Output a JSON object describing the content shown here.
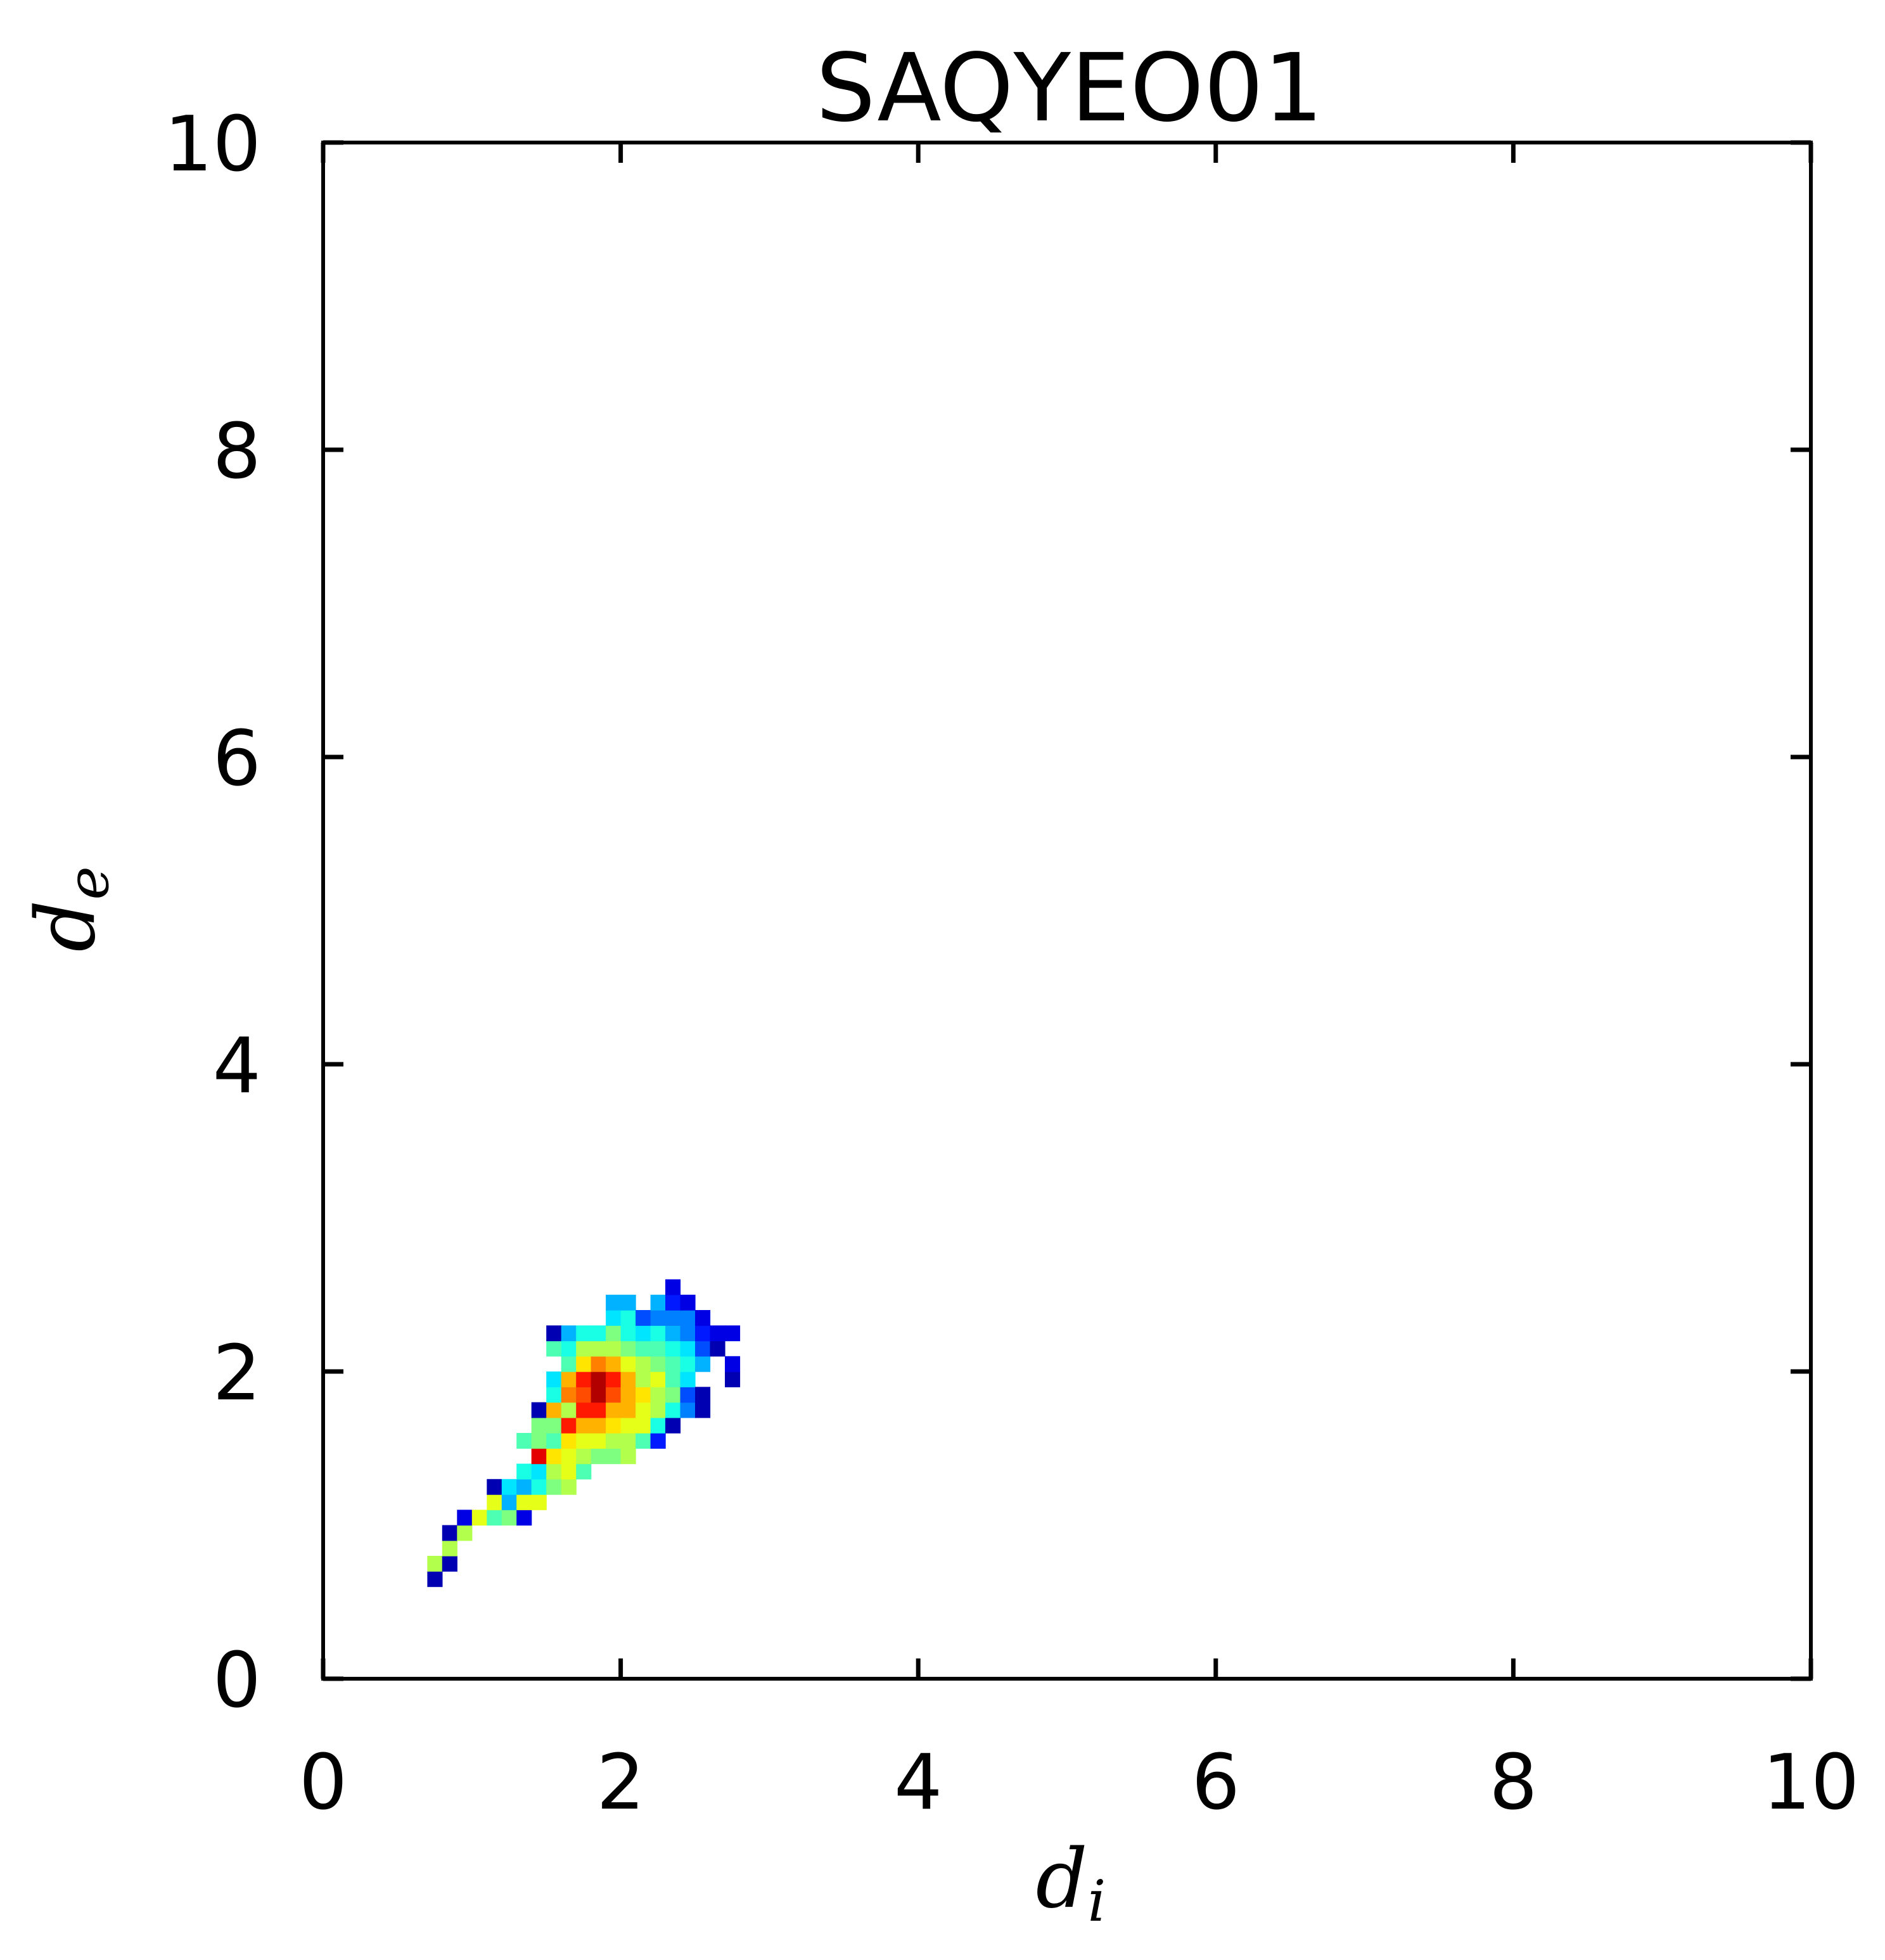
{
  "chart_data": {
    "type": "heatmap",
    "title": "SAQYEO01",
    "xlabel": {
      "main": "d",
      "sub": "i"
    },
    "ylabel": {
      "main": "d",
      "sub": "e"
    },
    "xlim": [
      0,
      10
    ],
    "ylim": [
      0,
      10
    ],
    "xticks": [
      0,
      2,
      4,
      6,
      8,
      10
    ],
    "yticks": [
      0,
      2,
      4,
      6,
      8,
      10
    ],
    "xtick_labels": [
      "0",
      "2",
      "4",
      "6",
      "8",
      "10"
    ],
    "ytick_labels": [
      "0",
      "2",
      "4",
      "6",
      "8",
      "10"
    ],
    "grid": false,
    "colormap": "jet",
    "bin_size": 0.1,
    "colormap_stops": [
      "#00007f",
      "#0000ff",
      "#007fff",
      "#00ffff",
      "#7fff7f",
      "#ffff00",
      "#ff7f00",
      "#ff0000",
      "#7f0000"
    ],
    "cells": [
      [
        0.75,
        0.65,
        0.05
      ],
      [
        0.75,
        0.75,
        0.55
      ],
      [
        0.85,
        0.75,
        0.05
      ],
      [
        0.85,
        0.85,
        0.55
      ],
      [
        0.85,
        0.95,
        0.05
      ],
      [
        0.95,
        0.95,
        0.55
      ],
      [
        0.95,
        1.05,
        0.1
      ],
      [
        1.05,
        1.05,
        0.6
      ],
      [
        1.15,
        1.05,
        0.45
      ],
      [
        1.15,
        1.15,
        0.6
      ],
      [
        1.15,
        1.25,
        0.05
      ],
      [
        1.25,
        1.05,
        0.5
      ],
      [
        1.25,
        1.15,
        0.3
      ],
      [
        1.25,
        1.25,
        0.35
      ],
      [
        1.35,
        1.05,
        0.1
      ],
      [
        1.35,
        1.15,
        0.6
      ],
      [
        1.35,
        1.25,
        0.3
      ],
      [
        1.35,
        1.35,
        0.4
      ],
      [
        1.35,
        1.55,
        0.45
      ],
      [
        1.45,
        1.15,
        0.6
      ],
      [
        1.45,
        1.25,
        0.4
      ],
      [
        1.45,
        1.35,
        0.35
      ],
      [
        1.45,
        1.45,
        0.9
      ],
      [
        1.45,
        1.55,
        0.5
      ],
      [
        1.45,
        1.65,
        0.5
      ],
      [
        1.45,
        1.75,
        0.05
      ],
      [
        1.55,
        1.25,
        0.5
      ],
      [
        1.55,
        1.35,
        0.55
      ],
      [
        1.55,
        1.45,
        0.65
      ],
      [
        1.55,
        1.55,
        0.45
      ],
      [
        1.55,
        1.65,
        0.5
      ],
      [
        1.55,
        1.75,
        0.7
      ],
      [
        1.55,
        1.85,
        0.4
      ],
      [
        1.55,
        1.95,
        0.35
      ],
      [
        1.55,
        2.15,
        0.45
      ],
      [
        1.55,
        2.25,
        0.05
      ],
      [
        1.65,
        1.25,
        0.55
      ],
      [
        1.65,
        1.35,
        0.6
      ],
      [
        1.65,
        1.45,
        0.6
      ],
      [
        1.65,
        1.55,
        0.65
      ],
      [
        1.65,
        1.65,
        0.85
      ],
      [
        1.65,
        1.75,
        0.55
      ],
      [
        1.65,
        1.85,
        0.75
      ],
      [
        1.65,
        1.95,
        0.7
      ],
      [
        1.65,
        2.05,
        0.45
      ],
      [
        1.65,
        2.15,
        0.4
      ],
      [
        1.65,
        2.25,
        0.3
      ],
      [
        1.75,
        1.35,
        0.45
      ],
      [
        1.75,
        1.45,
        0.55
      ],
      [
        1.75,
        1.55,
        0.6
      ],
      [
        1.75,
        1.65,
        0.7
      ],
      [
        1.75,
        1.75,
        0.85
      ],
      [
        1.75,
        1.85,
        0.8
      ],
      [
        1.75,
        1.95,
        0.85
      ],
      [
        1.75,
        2.05,
        0.65
      ],
      [
        1.75,
        2.15,
        0.55
      ],
      [
        1.75,
        2.25,
        0.4
      ],
      [
        1.85,
        1.45,
        0.5
      ],
      [
        1.85,
        1.55,
        0.6
      ],
      [
        1.85,
        1.65,
        0.7
      ],
      [
        1.85,
        1.75,
        0.85
      ],
      [
        1.85,
        1.85,
        0.95
      ],
      [
        1.85,
        1.95,
        0.95
      ],
      [
        1.85,
        2.05,
        0.75
      ],
      [
        1.85,
        2.15,
        0.55
      ],
      [
        1.85,
        2.25,
        0.4
      ],
      [
        1.95,
        1.45,
        0.5
      ],
      [
        1.95,
        1.55,
        0.55
      ],
      [
        1.95,
        1.65,
        0.65
      ],
      [
        1.95,
        1.75,
        0.7
      ],
      [
        1.95,
        1.85,
        0.8
      ],
      [
        1.95,
        1.95,
        0.85
      ],
      [
        1.95,
        2.05,
        0.7
      ],
      [
        1.95,
        2.15,
        0.55
      ],
      [
        1.95,
        2.25,
        0.5
      ],
      [
        1.95,
        2.35,
        0.35
      ],
      [
        1.95,
        2.45,
        0.3
      ],
      [
        2.05,
        1.45,
        0.55
      ],
      [
        2.05,
        1.55,
        0.55
      ],
      [
        2.05,
        1.65,
        0.6
      ],
      [
        2.05,
        1.75,
        0.7
      ],
      [
        2.05,
        1.85,
        0.7
      ],
      [
        2.05,
        1.95,
        0.7
      ],
      [
        2.05,
        2.05,
        0.6
      ],
      [
        2.05,
        2.15,
        0.5
      ],
      [
        2.05,
        2.25,
        0.4
      ],
      [
        2.05,
        2.35,
        0.4
      ],
      [
        2.05,
        2.45,
        0.3
      ],
      [
        2.15,
        1.55,
        0.45
      ],
      [
        2.15,
        1.65,
        0.6
      ],
      [
        2.15,
        1.75,
        0.6
      ],
      [
        2.15,
        1.85,
        0.65
      ],
      [
        2.15,
        1.95,
        0.55
      ],
      [
        2.15,
        2.05,
        0.55
      ],
      [
        2.15,
        2.15,
        0.45
      ],
      [
        2.15,
        2.25,
        0.35
      ],
      [
        2.15,
        2.35,
        0.2
      ],
      [
        2.25,
        1.55,
        0.15
      ],
      [
        2.25,
        1.65,
        0.4
      ],
      [
        2.25,
        1.75,
        0.55
      ],
      [
        2.25,
        1.85,
        0.55
      ],
      [
        2.25,
        1.95,
        0.6
      ],
      [
        2.25,
        2.05,
        0.5
      ],
      [
        2.25,
        2.15,
        0.45
      ],
      [
        2.25,
        2.25,
        0.4
      ],
      [
        2.25,
        2.35,
        0.25
      ],
      [
        2.25,
        2.45,
        0.3
      ],
      [
        2.35,
        1.65,
        0.05
      ],
      [
        2.35,
        1.75,
        0.4
      ],
      [
        2.35,
        1.85,
        0.5
      ],
      [
        2.35,
        1.95,
        0.45
      ],
      [
        2.35,
        2.05,
        0.45
      ],
      [
        2.35,
        2.15,
        0.4
      ],
      [
        2.35,
        2.25,
        0.3
      ],
      [
        2.35,
        2.35,
        0.25
      ],
      [
        2.35,
        2.45,
        0.15
      ],
      [
        2.35,
        2.55,
        0.1
      ],
      [
        2.45,
        1.75,
        0.25
      ],
      [
        2.45,
        1.85,
        0.2
      ],
      [
        2.45,
        1.95,
        0.35
      ],
      [
        2.45,
        2.05,
        0.4
      ],
      [
        2.45,
        2.15,
        0.35
      ],
      [
        2.45,
        2.25,
        0.25
      ],
      [
        2.45,
        2.35,
        0.25
      ],
      [
        2.45,
        2.45,
        0.1
      ],
      [
        2.55,
        1.75,
        0.05
      ],
      [
        2.55,
        1.85,
        0.05
      ],
      [
        2.55,
        2.05,
        0.3
      ],
      [
        2.55,
        2.15,
        0.2
      ],
      [
        2.55,
        2.25,
        0.15
      ],
      [
        2.55,
        2.35,
        0.1
      ],
      [
        2.65,
        2.15,
        0.05
      ],
      [
        2.65,
        2.25,
        0.1
      ],
      [
        2.75,
        1.95,
        0.05
      ],
      [
        2.75,
        2.05,
        0.1
      ],
      [
        2.75,
        2.25,
        0.1
      ]
    ]
  }
}
